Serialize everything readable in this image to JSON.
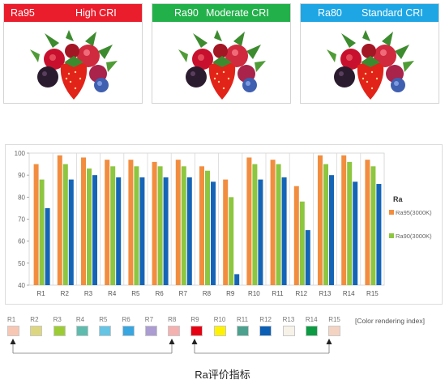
{
  "cards": [
    {
      "grade": "Ra95",
      "desc": "High CRI",
      "color": "#ea1d2c"
    },
    {
      "grade": "Ra90",
      "desc": "Moderate CRI",
      "color": "#22b04a"
    },
    {
      "grade": "Ra80",
      "desc": "Standard CRI",
      "color": "#1ea6e4"
    }
  ],
  "chart_data": {
    "type": "bar",
    "categories": [
      "R1",
      "R2",
      "R3",
      "R4",
      "R5",
      "R6",
      "R7",
      "R8",
      "R9",
      "R10",
      "R11",
      "R12",
      "R13",
      "R14",
      "R15"
    ],
    "series": [
      {
        "name": "Ra95(3000K)",
        "color": "#f28d3f",
        "values": [
          95,
          99,
          98,
          97,
          97,
          96,
          97,
          94,
          88,
          98,
          97,
          85,
          99,
          99,
          97
        ]
      },
      {
        "name": "Ra90(3000K)",
        "color": "#8dc63f",
        "values": [
          88,
          95,
          93,
          94,
          94,
          94,
          94,
          92,
          80,
          95,
          95,
          78,
          95,
          96,
          94
        ]
      },
      {
        "name": "",
        "color": "#1565b7",
        "values": [
          75,
          88,
          90,
          89,
          89,
          89,
          89,
          87,
          45,
          88,
          89,
          65,
          90,
          87,
          86
        ]
      }
    ],
    "yticks": [
      40,
      50,
      60,
      70,
      80,
      90,
      100
    ],
    "ylim": [
      40,
      100
    ],
    "legend_title": "Ra",
    "legend_position": "right",
    "grid": "vertical"
  },
  "color_index": {
    "label": "[Color rendering index]",
    "items": [
      {
        "label": "R1",
        "color": "#f7c7b3"
      },
      {
        "label": "R2",
        "color": "#ddd680"
      },
      {
        "label": "R3",
        "color": "#9ccc34"
      },
      {
        "label": "R4",
        "color": "#5dbcae"
      },
      {
        "label": "R5",
        "color": "#66c4e4"
      },
      {
        "label": "R6",
        "color": "#38a6e0"
      },
      {
        "label": "R7",
        "color": "#ab9cd1"
      },
      {
        "label": "R8",
        "color": "#f4b1b0"
      },
      {
        "label": "R9",
        "color": "#e60012"
      },
      {
        "label": "R10",
        "color": "#fff200"
      },
      {
        "label": "R11",
        "color": "#4ba18e"
      },
      {
        "label": "R12",
        "color": "#0b5fb5"
      },
      {
        "label": "R13",
        "color": "#f7f2e8"
      },
      {
        "label": "R14",
        "color": "#0b9b43"
      },
      {
        "label": "R15",
        "color": "#f4d3c3"
      }
    ]
  },
  "caption": "Ra评价指标"
}
